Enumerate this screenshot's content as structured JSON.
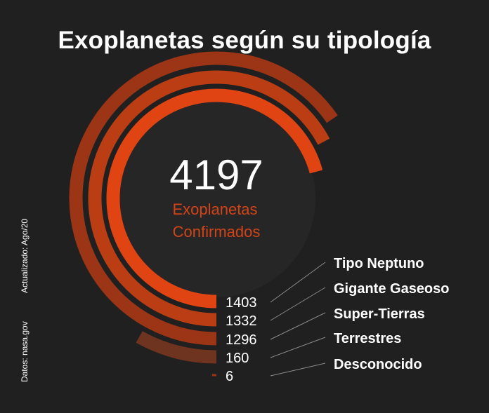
{
  "title": "Exoplanetas según su tipología",
  "total": {
    "value": "4197",
    "label_line1": "Exoplanetas",
    "label_line2": "Confirmados"
  },
  "notes": {
    "updated": "Actualizado:  Ago/20",
    "source": "Datos: nasa.gov"
  },
  "colors": {
    "background": "#202020",
    "center_disc": "#262626",
    "accent_text": "#d24417",
    "leader_line": "#8a8a8a"
  },
  "chart_data": {
    "type": "radial-bar",
    "title": "Exoplanetas según su tipología",
    "total": 4197,
    "categories": [
      "Tipo Neptuno",
      "Gigante Gaseoso",
      "Super-Tierras",
      "Terrestres",
      "Desconocido"
    ],
    "values": [
      1403,
      1332,
      1296,
      160,
      6
    ],
    "value_labels": [
      "1403",
      "1332",
      "1296",
      "160",
      "6"
    ],
    "colors": [
      "#e04412",
      "#ba3d14",
      "#9c3416",
      "#6e3420",
      "#9c3416"
    ],
    "legend": "right"
  }
}
